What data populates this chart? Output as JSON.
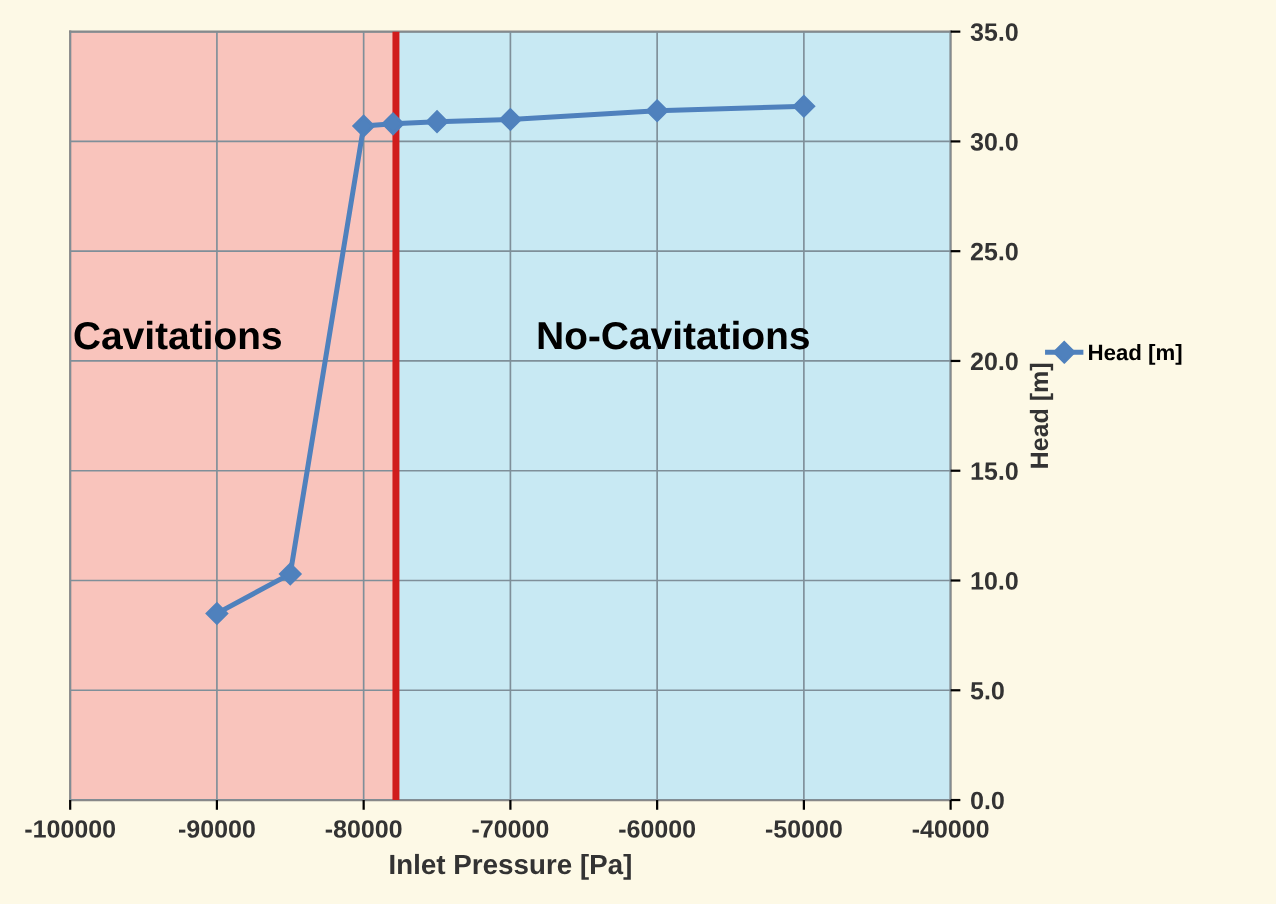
{
  "chart_data": {
    "type": "line",
    "xlabel": "Inlet Pressure [Pa]",
    "ylabel": "Head [m]",
    "series": [
      {
        "name": "Head [m]",
        "color": "#4f81bd",
        "x": [
          -90000,
          -85000,
          -80000,
          -78000,
          -75000,
          -70000,
          -60000,
          -50000
        ],
        "values": [
          8.5,
          10.3,
          30.7,
          30.8,
          30.9,
          31.0,
          31.4,
          31.6
        ]
      }
    ],
    "xlim": [
      -100000,
      -40000
    ],
    "xticks": [
      -100000,
      -90000,
      -80000,
      -70000,
      -60000,
      -50000,
      -40000
    ],
    "ylim": [
      0,
      35
    ],
    "yticks": [
      {
        "value": 0,
        "label": "0.0"
      },
      {
        "value": 5,
        "label": "5.0"
      },
      {
        "value": 10,
        "label": "10.0"
      },
      {
        "value": 15,
        "label": "15.0"
      },
      {
        "value": 20,
        "label": "20.0"
      },
      {
        "value": 25,
        "label": "25.0"
      },
      {
        "value": 30,
        "label": "30.0"
      },
      {
        "value": 35,
        "label": "35.0"
      }
    ],
    "bands": [
      {
        "axis": "x",
        "from": -100000,
        "to": -77800,
        "label": "Cavitations",
        "color": "#f9c4bc"
      },
      {
        "axis": "x",
        "from": -77800,
        "to": -40000,
        "label": "No-Cavitations",
        "color": "#c8e9f3"
      }
    ],
    "ref_lines": [
      {
        "axis": "x",
        "value": -77800,
        "color": "#d01c1c",
        "line_style": "solid"
      }
    ],
    "grid": true,
    "legend": "right",
    "marker": "diamond",
    "line_style": "solid"
  }
}
